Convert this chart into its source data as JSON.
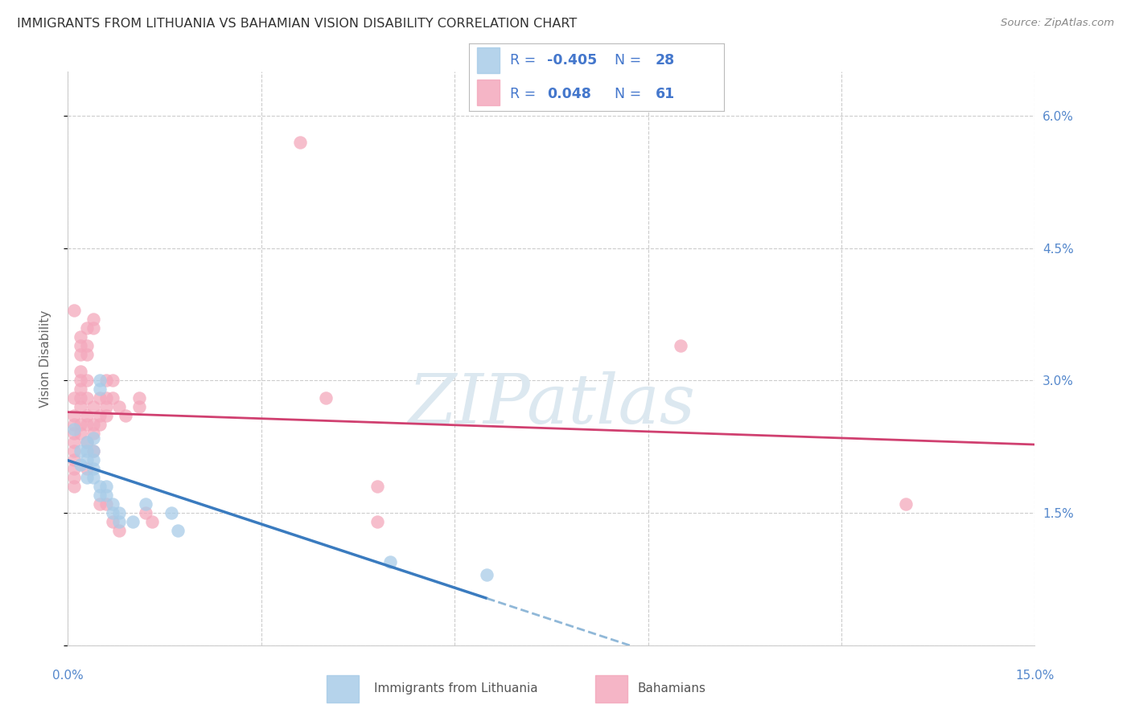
{
  "title": "IMMIGRANTS FROM LITHUANIA VS BAHAMIAN VISION DISABILITY CORRELATION CHART",
  "source": "Source: ZipAtlas.com",
  "ylabel": "Vision Disability",
  "xlim": [
    0.0,
    0.15
  ],
  "ylim": [
    0.0,
    0.065
  ],
  "yticks": [
    0.0,
    0.015,
    0.03,
    0.045,
    0.06
  ],
  "xticks": [
    0.0,
    0.03,
    0.06,
    0.09,
    0.12,
    0.15
  ],
  "yticklabels": [
    "",
    "1.5%",
    "3.0%",
    "4.5%",
    "6.0%"
  ],
  "lithuania_color": "#a8cce8",
  "bahamian_color": "#f4a8bc",
  "lithuania_line_color": "#3a7bbf",
  "bahamian_line_color": "#d04070",
  "lithuania_line_dash_color": "#90b8d8",
  "watermark": "ZIPatlas",
  "background_color": "#ffffff",
  "grid_color": "#cccccc",
  "title_color": "#333333",
  "right_yaxis_color": "#5588cc",
  "watermark_color": "#dce8f0",
  "legend_text_color": "#4477cc",
  "lithuania_points": [
    [
      0.001,
      0.0245
    ],
    [
      0.002,
      0.022
    ],
    [
      0.002,
      0.0205
    ],
    [
      0.003,
      0.023
    ],
    [
      0.003,
      0.022
    ],
    [
      0.003,
      0.021
    ],
    [
      0.003,
      0.019
    ],
    [
      0.004,
      0.0235
    ],
    [
      0.004,
      0.022
    ],
    [
      0.004,
      0.021
    ],
    [
      0.004,
      0.02
    ],
    [
      0.004,
      0.019
    ],
    [
      0.005,
      0.018
    ],
    [
      0.005,
      0.017
    ],
    [
      0.005,
      0.03
    ],
    [
      0.005,
      0.029
    ],
    [
      0.006,
      0.018
    ],
    [
      0.006,
      0.017
    ],
    [
      0.007,
      0.016
    ],
    [
      0.007,
      0.015
    ],
    [
      0.008,
      0.015
    ],
    [
      0.008,
      0.014
    ],
    [
      0.01,
      0.014
    ],
    [
      0.012,
      0.016
    ],
    [
      0.016,
      0.015
    ],
    [
      0.017,
      0.013
    ],
    [
      0.05,
      0.0095
    ],
    [
      0.065,
      0.008
    ]
  ],
  "bahamian_points": [
    [
      0.001,
      0.028
    ],
    [
      0.001,
      0.026
    ],
    [
      0.001,
      0.025
    ],
    [
      0.001,
      0.024
    ],
    [
      0.001,
      0.023
    ],
    [
      0.001,
      0.022
    ],
    [
      0.001,
      0.021
    ],
    [
      0.001,
      0.02
    ],
    [
      0.001,
      0.019
    ],
    [
      0.001,
      0.018
    ],
    [
      0.001,
      0.038
    ],
    [
      0.002,
      0.035
    ],
    [
      0.002,
      0.034
    ],
    [
      0.002,
      0.033
    ],
    [
      0.002,
      0.031
    ],
    [
      0.002,
      0.03
    ],
    [
      0.002,
      0.029
    ],
    [
      0.002,
      0.028
    ],
    [
      0.002,
      0.027
    ],
    [
      0.002,
      0.025
    ],
    [
      0.002,
      0.024
    ],
    [
      0.003,
      0.036
    ],
    [
      0.003,
      0.034
    ],
    [
      0.003,
      0.033
    ],
    [
      0.003,
      0.03
    ],
    [
      0.003,
      0.028
    ],
    [
      0.003,
      0.026
    ],
    [
      0.003,
      0.025
    ],
    [
      0.003,
      0.023
    ],
    [
      0.003,
      0.02
    ],
    [
      0.004,
      0.037
    ],
    [
      0.004,
      0.036
    ],
    [
      0.004,
      0.027
    ],
    [
      0.004,
      0.025
    ],
    [
      0.004,
      0.024
    ],
    [
      0.004,
      0.022
    ],
    [
      0.005,
      0.028
    ],
    [
      0.005,
      0.026
    ],
    [
      0.005,
      0.025
    ],
    [
      0.005,
      0.016
    ],
    [
      0.006,
      0.03
    ],
    [
      0.006,
      0.028
    ],
    [
      0.006,
      0.027
    ],
    [
      0.006,
      0.026
    ],
    [
      0.006,
      0.016
    ],
    [
      0.007,
      0.03
    ],
    [
      0.007,
      0.028
    ],
    [
      0.007,
      0.014
    ],
    [
      0.008,
      0.027
    ],
    [
      0.008,
      0.013
    ],
    [
      0.009,
      0.026
    ],
    [
      0.011,
      0.028
    ],
    [
      0.011,
      0.027
    ],
    [
      0.012,
      0.015
    ],
    [
      0.013,
      0.014
    ],
    [
      0.036,
      0.057
    ],
    [
      0.04,
      0.028
    ],
    [
      0.048,
      0.018
    ],
    [
      0.048,
      0.014
    ],
    [
      0.095,
      0.034
    ],
    [
      0.13,
      0.016
    ]
  ]
}
